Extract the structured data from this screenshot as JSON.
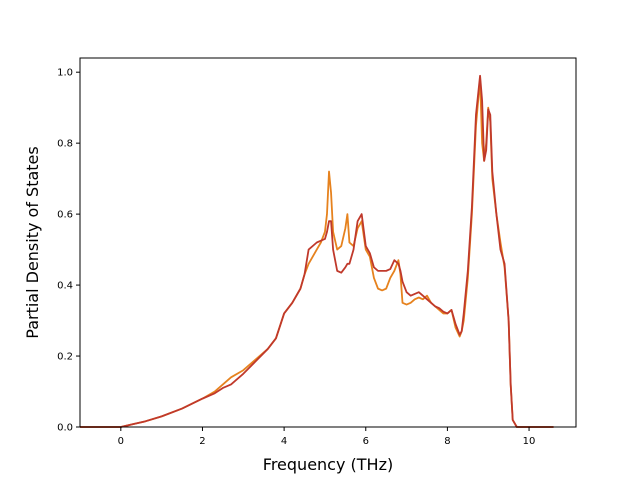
{
  "chart_data": {
    "type": "line",
    "title": "",
    "xlabel": "Frequency (THz)",
    "ylabel": "Partial Density of States",
    "xlim": [
      -1.0,
      11.15
    ],
    "ylim": [
      0.0,
      1.04
    ],
    "xticks": [
      0,
      2,
      4,
      6,
      8,
      10
    ],
    "yticks": [
      0.0,
      0.2,
      0.4,
      0.6,
      0.8,
      1.0
    ],
    "xtick_labels": [
      "0",
      "2",
      "4",
      "6",
      "8",
      "10"
    ],
    "ytick_labels": [
      "0.0",
      "0.2",
      "0.4",
      "0.6",
      "0.8",
      "1.0"
    ],
    "grid": false,
    "legend": false,
    "series": [
      {
        "color": "#e6821e",
        "x": [
          -1.0,
          -0.5,
          0.0,
          0.3,
          0.6,
          1.0,
          1.5,
          2.0,
          2.3,
          2.5,
          2.7,
          3.0,
          3.3,
          3.6,
          3.8,
          4.0,
          4.2,
          4.4,
          4.5,
          4.6,
          4.8,
          4.9,
          5.0,
          5.05,
          5.1,
          5.15,
          5.2,
          5.3,
          5.4,
          5.5,
          5.55,
          5.6,
          5.7,
          5.8,
          5.9,
          6.0,
          6.1,
          6.2,
          6.3,
          6.4,
          6.5,
          6.6,
          6.7,
          6.8,
          6.85,
          6.9,
          7.0,
          7.1,
          7.2,
          7.3,
          7.4,
          7.5,
          7.6,
          7.7,
          7.8,
          7.9,
          8.0,
          8.1,
          8.2,
          8.3,
          8.35,
          8.4,
          8.5,
          8.6,
          8.7,
          8.8,
          8.85,
          8.9,
          8.95,
          9.0,
          9.05,
          9.1,
          9.2,
          9.3,
          9.4,
          9.5,
          9.55,
          9.6,
          9.7,
          10.0,
          10.6
        ],
        "y": [
          0.0,
          0.0,
          0.0,
          0.008,
          0.016,
          0.03,
          0.052,
          0.08,
          0.1,
          0.12,
          0.14,
          0.16,
          0.19,
          0.22,
          0.25,
          0.32,
          0.35,
          0.39,
          0.43,
          0.46,
          0.5,
          0.52,
          0.55,
          0.6,
          0.72,
          0.66,
          0.55,
          0.5,
          0.51,
          0.56,
          0.6,
          0.52,
          0.51,
          0.56,
          0.58,
          0.5,
          0.48,
          0.42,
          0.39,
          0.385,
          0.39,
          0.42,
          0.44,
          0.47,
          0.43,
          0.35,
          0.345,
          0.35,
          0.36,
          0.365,
          0.36,
          0.37,
          0.35,
          0.34,
          0.33,
          0.32,
          0.32,
          0.33,
          0.28,
          0.255,
          0.27,
          0.3,
          0.42,
          0.6,
          0.85,
          0.98,
          0.8,
          0.75,
          0.8,
          0.9,
          0.86,
          0.7,
          0.6,
          0.52,
          0.45,
          0.3,
          0.12,
          0.02,
          0.0,
          0.0,
          0.0
        ]
      },
      {
        "color": "#c0392b",
        "x": [
          -1.0,
          -0.5,
          0.0,
          0.3,
          0.6,
          1.0,
          1.5,
          2.0,
          2.3,
          2.5,
          2.7,
          3.0,
          3.3,
          3.6,
          3.8,
          4.0,
          4.2,
          4.4,
          4.5,
          4.6,
          4.8,
          4.9,
          5.0,
          5.05,
          5.1,
          5.15,
          5.2,
          5.3,
          5.4,
          5.5,
          5.55,
          5.6,
          5.7,
          5.8,
          5.9,
          6.0,
          6.1,
          6.2,
          6.3,
          6.4,
          6.5,
          6.6,
          6.7,
          6.8,
          6.85,
          6.9,
          7.0,
          7.1,
          7.2,
          7.3,
          7.4,
          7.5,
          7.6,
          7.7,
          7.8,
          7.9,
          8.0,
          8.1,
          8.2,
          8.3,
          8.35,
          8.4,
          8.5,
          8.6,
          8.7,
          8.8,
          8.85,
          8.9,
          8.95,
          9.0,
          9.05,
          9.1,
          9.2,
          9.3,
          9.4,
          9.5,
          9.55,
          9.6,
          9.7,
          10.0,
          10.6
        ],
        "y": [
          0.0,
          0.0,
          0.0,
          0.008,
          0.016,
          0.03,
          0.052,
          0.08,
          0.095,
          0.11,
          0.12,
          0.15,
          0.185,
          0.22,
          0.25,
          0.32,
          0.35,
          0.39,
          0.43,
          0.5,
          0.52,
          0.525,
          0.53,
          0.55,
          0.58,
          0.58,
          0.5,
          0.44,
          0.435,
          0.45,
          0.46,
          0.46,
          0.5,
          0.58,
          0.6,
          0.51,
          0.49,
          0.45,
          0.44,
          0.44,
          0.44,
          0.445,
          0.47,
          0.46,
          0.44,
          0.41,
          0.38,
          0.37,
          0.375,
          0.38,
          0.37,
          0.36,
          0.35,
          0.34,
          0.335,
          0.325,
          0.32,
          0.33,
          0.29,
          0.26,
          0.27,
          0.32,
          0.44,
          0.62,
          0.88,
          0.99,
          0.92,
          0.75,
          0.78,
          0.895,
          0.88,
          0.72,
          0.6,
          0.5,
          0.46,
          0.3,
          0.12,
          0.02,
          0.0,
          0.0,
          0.0
        ]
      }
    ]
  }
}
